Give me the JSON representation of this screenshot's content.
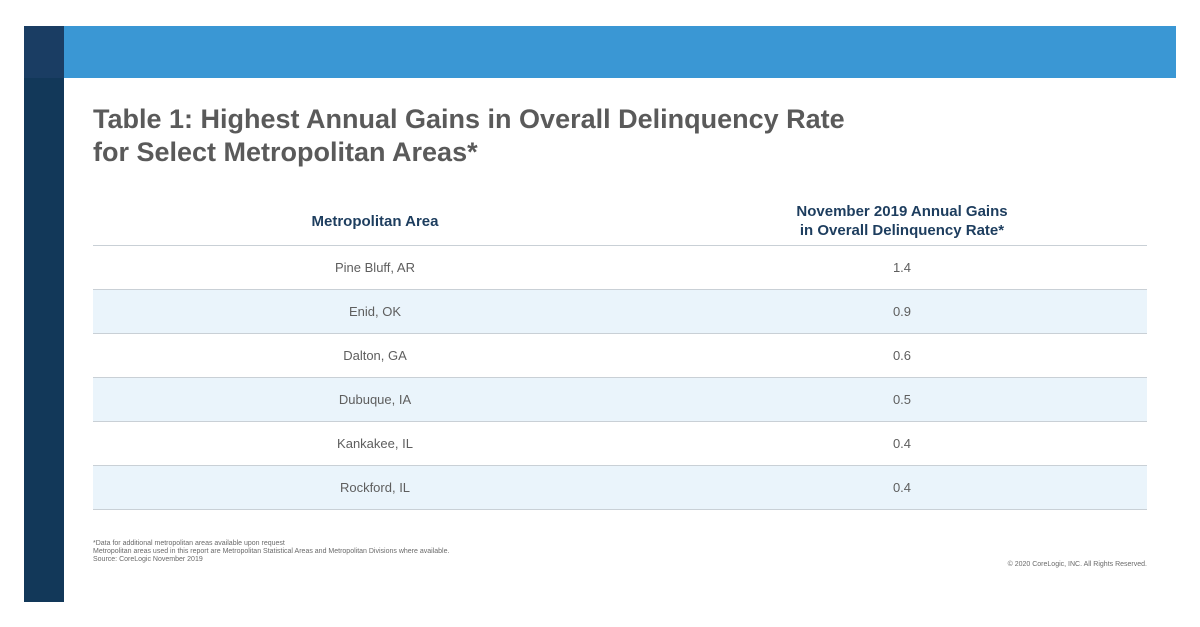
{
  "title": {
    "line1": "Table 1: Highest Annual Gains in Overall Delinquency Rate",
    "line2": "for Select Metropolitan Areas*"
  },
  "colors": {
    "top_band": "#3a97d4",
    "left_bar": "#123859",
    "header_text": "#1d3d5e",
    "alt_row": "#eaf4fb"
  },
  "chart_data": {
    "type": "table",
    "columns": [
      "Metropolitan Area",
      "November 2019 Annual Gains in Overall Delinquency Rate*"
    ],
    "header_lines": [
      "November 2019 Annual Gains",
      "in Overall Delinquency Rate*"
    ],
    "rows": [
      {
        "area": "Pine Bluff, AR",
        "value": "1.4"
      },
      {
        "area": "Enid, OK",
        "value": "0.9"
      },
      {
        "area": "Dalton, GA",
        "value": "0.6"
      },
      {
        "area": "Dubuque, IA",
        "value": "0.5"
      },
      {
        "area": "Kankakee, IL",
        "value": "0.4"
      },
      {
        "area": "Rockford, IL",
        "value": "0.4"
      }
    ]
  },
  "footnotes": [
    "*Data for additional metropolitan areas available upon request",
    "Metropolitan areas used in this report are Metropolitan Statistical Areas and Metropolitan Divisions where available.",
    "Source: CoreLogic November 2019"
  ],
  "copyright": "© 2020 CoreLogic, INC. All Rights Reserved."
}
